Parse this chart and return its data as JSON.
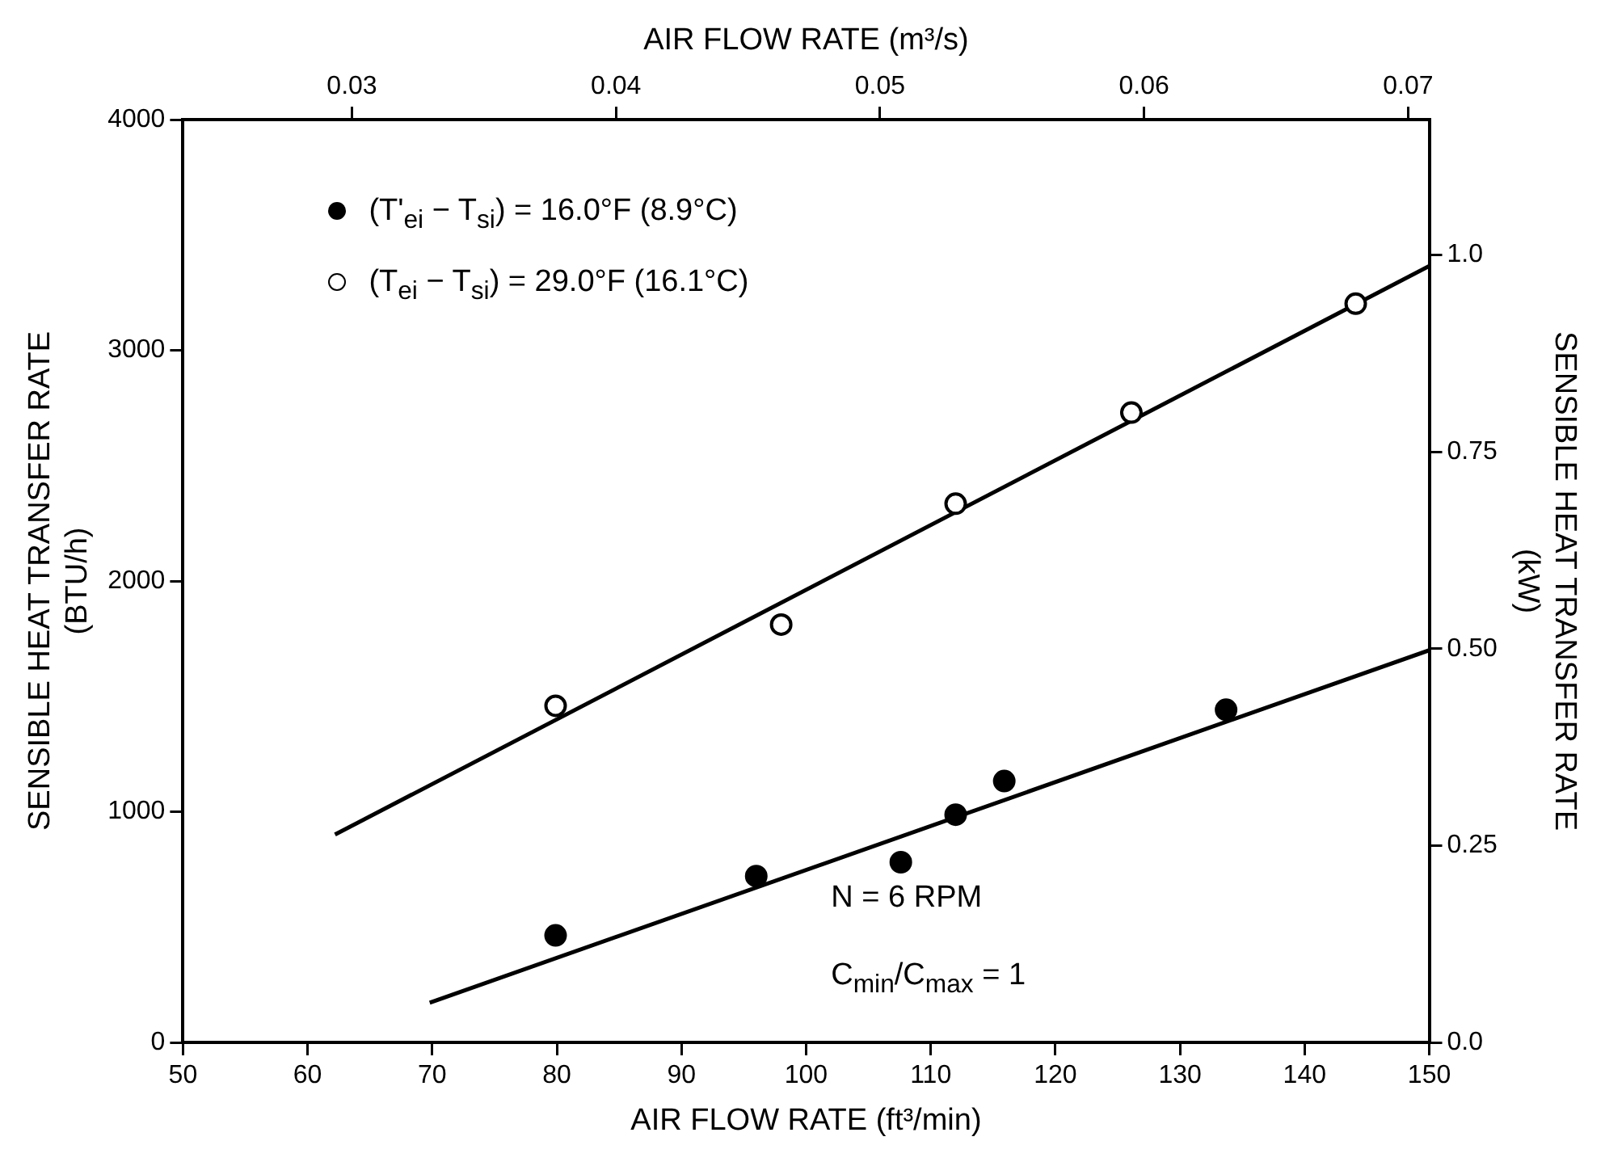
{
  "chart_data": {
    "type": "scatter",
    "xlabel": "AIR FLOW RATE (ft³/min)",
    "x2label": "AIR FLOW RATE (m³/s)",
    "ylabel": "SENSIBLE HEAT TRANSFER RATE\n(BTU/h)",
    "y2label": "SENSIBLE HEAT TRANSFER RATE\n(kW)",
    "xlim": [
      50,
      150
    ],
    "xticks": [
      50,
      60,
      70,
      80,
      90,
      100,
      110,
      120,
      130,
      140,
      150
    ],
    "x2lim": [
      0.0236,
      0.0708
    ],
    "x2ticks": [
      0.03,
      0.04,
      0.05,
      0.06,
      0.07
    ],
    "ylim": [
      0,
      4000
    ],
    "yticks": [
      0,
      1000,
      2000,
      3000,
      4000
    ],
    "y2lim": [
      0,
      1.172
    ],
    "y2ticks": [
      {
        "value": 0,
        "label": "0.0"
      },
      0.25,
      {
        "value": 0.5,
        "label": "0.50"
      },
      0.75,
      {
        "value": 1,
        "label": "1.0"
      }
    ],
    "series": [
      {
        "name": "(T'$_{ei}$ − T$_{si}$) = 16.0°F (8.9°C)",
        "type": "scatter",
        "color": "#000000",
        "marker": "circle",
        "x": [
          79.9,
          96.0,
          107.6,
          112.0,
          115.9,
          133.7
        ],
        "values": [
          464,
          721,
          781,
          987,
          1133,
          1442
        ]
      },
      {
        "name": "(T$_{ei}$ − T$_{si}$) = 29.0°F (16.1°C)",
        "type": "scatter",
        "color": "#000000",
        "marker": "circle-open",
        "x": [
          79.9,
          98.0,
          112.0,
          126.1,
          144.1
        ],
        "values": [
          1459,
          1811,
          2335,
          2730,
          3202
        ]
      },
      {
        "type": "line",
        "color": "#000000",
        "marker": "none",
        "x": [
          69.8,
          150
        ],
        "values": [
          172,
          1700
        ]
      },
      {
        "type": "line",
        "color": "#000000",
        "marker": "none",
        "x": [
          62.2,
          150
        ],
        "values": [
          901,
          3365
        ]
      }
    ],
    "annotations": [
      "N = 6 RPM",
      "C$_{min}$/C$_{max}$ = 1"
    ],
    "legend": "top left",
    "grid": false
  }
}
